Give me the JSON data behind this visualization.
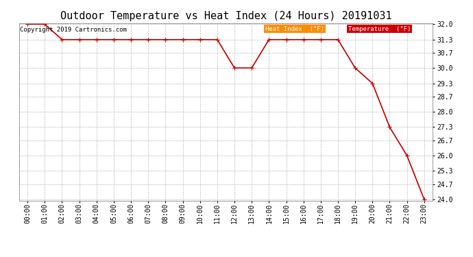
{
  "title": "Outdoor Temperature vs Heat Index (24 Hours) 20191031",
  "copyright_text": "Copyright 2019 Cartronics.com",
  "x_labels": [
    "00:00",
    "01:00",
    "02:00",
    "03:00",
    "04:00",
    "05:00",
    "06:00",
    "07:00",
    "08:00",
    "09:00",
    "10:00",
    "11:00",
    "12:00",
    "13:00",
    "14:00",
    "15:00",
    "16:00",
    "17:00",
    "18:00",
    "19:00",
    "20:00",
    "21:00",
    "22:00",
    "23:00"
  ],
  "temperature_values": [
    32.0,
    32.0,
    31.3,
    31.3,
    31.3,
    31.3,
    31.3,
    31.3,
    31.3,
    31.3,
    31.3,
    31.3,
    30.0,
    30.0,
    31.3,
    31.3,
    31.3,
    31.3,
    31.3,
    30.0,
    29.3,
    27.3,
    26.0,
    24.0
  ],
  "heat_index_values": [
    32.0,
    32.0,
    31.3,
    31.3,
    31.3,
    31.3,
    31.3,
    31.3,
    31.3,
    31.3,
    31.3,
    31.3,
    30.0,
    30.0,
    31.3,
    31.3,
    31.3,
    31.3,
    31.3,
    30.0,
    29.3,
    27.3,
    26.0,
    24.0
  ],
  "ylim_min": 24.0,
  "ylim_max": 32.0,
  "yticks": [
    24.0,
    24.7,
    25.3,
    26.0,
    26.7,
    27.3,
    28.0,
    28.7,
    29.3,
    30.0,
    30.7,
    31.3,
    32.0
  ],
  "line_color": "#cc0000",
  "marker": "+",
  "marker_color": "#cc0000",
  "background_color": "#ffffff",
  "plot_bg_color": "#ffffff",
  "grid_color": "#bbbbbb",
  "legend_heat_index_bg": "#ff8c00",
  "legend_heat_index_text": "#ffffff",
  "legend_temp_bg": "#cc0000",
  "legend_temp_text": "#ffffff",
  "title_fontsize": 11,
  "axis_fontsize": 7,
  "copyright_fontsize": 6.5
}
